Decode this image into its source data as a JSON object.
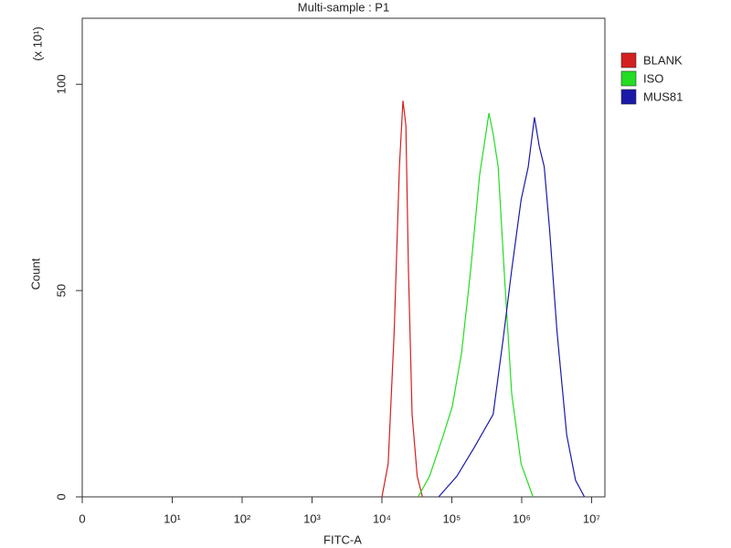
{
  "chart_data": {
    "type": "histogram-overlay",
    "title": "Multi-sample : P1",
    "x_label": "FITC-A",
    "y_label": "Count",
    "y_multiplier": "(x 10¹)",
    "xscale": "log",
    "xlim": [
      0,
      15500000
    ],
    "xticks": [
      0,
      {
        "value": 10,
        "label": "10¹"
      },
      {
        "value": 100,
        "label": "10²"
      },
      {
        "value": 1000,
        "label": "10³"
      },
      {
        "value": 10000,
        "label": "10⁴"
      },
      {
        "value": 100000,
        "label": "10⁵"
      },
      {
        "value": 1000000,
        "label": "10⁶"
      },
      {
        "value": 10000000,
        "label": "10⁷"
      }
    ],
    "ylim": [
      0,
      116
    ],
    "yticks": [
      0,
      50,
      100
    ],
    "legend": "right",
    "series": [
      {
        "name": "BLANK",
        "color": "#d42020",
        "x": [
          10000,
          12300,
          15000,
          17800,
          20000,
          22000,
          24000,
          27000,
          32000,
          38000
        ],
        "values": [
          0,
          8,
          40,
          80,
          96,
          90,
          55,
          20,
          5,
          0
        ]
      },
      {
        "name": "ISO",
        "color": "#22dd22",
        "x": [
          33000,
          48000,
          76000,
          102000,
          138000,
          186000,
          250000,
          340000,
          390000,
          460000,
          560000,
          720000,
          980000,
          1450000
        ],
        "values": [
          0,
          5,
          15,
          22,
          35,
          55,
          78,
          93,
          88,
          80,
          55,
          25,
          8,
          0
        ]
      },
      {
        "name": "MUS81",
        "color": "#1a1aa8",
        "x": [
          65000,
          118000,
          210000,
          390000,
          540000,
          720000,
          980000,
          1240000,
          1520000,
          1780000,
          2100000,
          2500000,
          3200000,
          4400000,
          5900000,
          7900000
        ],
        "values": [
          0,
          5,
          12,
          20,
          38,
          55,
          72,
          80,
          92,
          85,
          80,
          65,
          40,
          15,
          4,
          0
        ]
      }
    ]
  }
}
